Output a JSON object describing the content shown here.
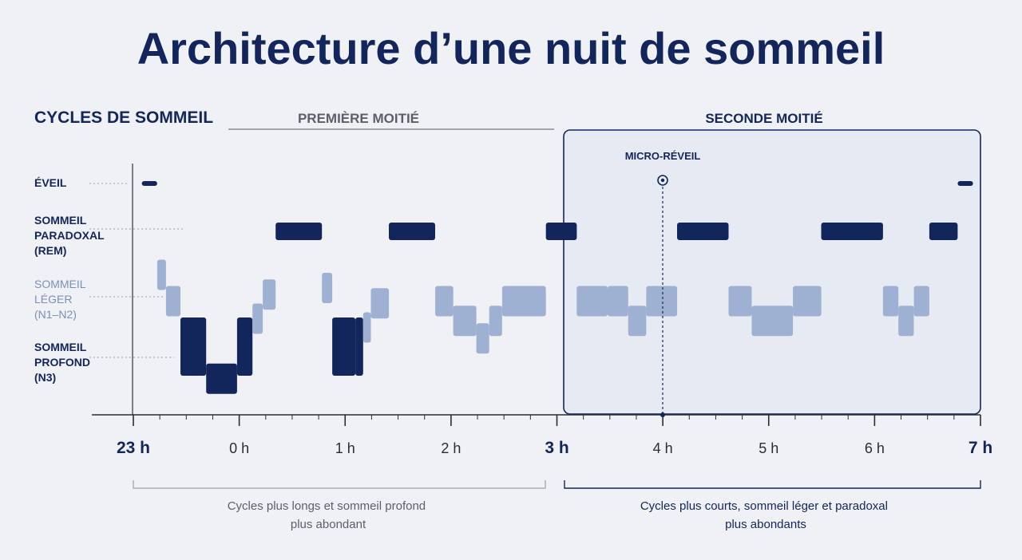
{
  "title": "Architecture d’une nuit de sommeil",
  "section_label": "CYCLES DE SOMMEIL",
  "first_half_label": "PREMIÈRE MOITIÉ",
  "second_half_label": "SECONDE MOITIÉ",
  "micro_awakening_label": "MICRO-RÉVEIL",
  "stages": {
    "awake": [
      "ÉVEIL"
    ],
    "rem": [
      "SOMMEIL",
      "PARADOXAL",
      "(REM)"
    ],
    "light": [
      "SOMMEIL",
      "LÉGER",
      "(N1–N2)"
    ],
    "deep": [
      "SOMMEIL",
      "PROFOND",
      "(N3)"
    ]
  },
  "hours": [
    "23 h",
    "0 h",
    "1 h",
    "2 h",
    "3 h",
    "4 h",
    "5 h",
    "6 h",
    "7 h"
  ],
  "first_half_caption": [
    "Cycles plus longs et sommeil profond",
    "plus abondant"
  ],
  "second_half_caption": [
    "Cycles plus courts, sommeil léger et paradoxal",
    "plus abondants"
  ],
  "colors": {
    "dark": "#13265c",
    "light": "#9eb1d2",
    "background": "#f0f1f5",
    "panel": "#e6eaf2",
    "grey_text": "#5c5f6b"
  },
  "chart_data": {
    "type": "diagram",
    "x_range_hours": [
      23,
      31
    ],
    "stage_order": [
      "awake",
      "rem",
      "light",
      "deep"
    ],
    "segments": [
      {
        "start": 23.15,
        "end": 23.45,
        "stage": "awake",
        "tone": "dark",
        "band": 0.08
      },
      {
        "start": 23.45,
        "end": 23.62,
        "stage": "light",
        "tone": "light",
        "offset": -0.5
      },
      {
        "start": 23.62,
        "end": 23.9,
        "stage": "light",
        "tone": "light",
        "offset": 0.1
      },
      {
        "start": 23.9,
        "end": 24.4,
        "stage": "deep",
        "tone": "dark",
        "offset": 0.1
      },
      {
        "start": 24.4,
        "end": 25.0,
        "stage": "deep",
        "tone": "dark",
        "offset": 0.45
      },
      {
        "start": 25.0,
        "end": 25.3,
        "stage": "deep",
        "tone": "dark",
        "offset": 0.1
      },
      {
        "start": 25.3,
        "end": 25.5,
        "stage": "light",
        "tone": "light",
        "offset": 0.5
      },
      {
        "start": 25.5,
        "end": 25.75,
        "stage": "light",
        "tone": "light",
        "offset": -0.05
      },
      {
        "start": 25.75,
        "end": 26.65,
        "stage": "rem",
        "tone": "dark"
      },
      {
        "start": 26.65,
        "end": 26.85,
        "stage": "light",
        "tone": "light",
        "offset": -0.2
      },
      {
        "start": 26.85,
        "end": 27.3,
        "stage": "deep",
        "tone": "dark",
        "offset": 0.1
      },
      {
        "start": 27.3,
        "end": 27.45,
        "stage": "deep",
        "tone": "dark",
        "offset": 0.3
      },
      {
        "start": 27.45,
        "end": 27.6,
        "stage": "light",
        "tone": "light",
        "offset": 0.7
      },
      {
        "start": 27.6,
        "end": 27.95,
        "stage": "light",
        "tone": "light",
        "offset": 0.15
      },
      {
        "start": 27.95,
        "end": 28.85,
        "stage": "rem",
        "tone": "dark"
      },
      {
        "start": 28.85,
        "end": 29.2,
        "stage": "light",
        "tone": "light",
        "offset": 0.1
      },
      {
        "start": 29.2,
        "end": 29.65,
        "stage": "light",
        "tone": "light",
        "offset": 0.55
      },
      {
        "start": 29.65,
        "end": 29.9,
        "stage": "light",
        "tone": "light",
        "offset": 0.95
      },
      {
        "start": 29.9,
        "end": 30.15,
        "stage": "light",
        "tone": "light",
        "offset": 0.55
      },
      {
        "start": 30.15,
        "end": 31.0,
        "stage": "light",
        "tone": "light",
        "offset": 0.1
      },
      {
        "start": 31.0,
        "end": 31.6,
        "stage": "rem",
        "tone": "dark"
      },
      {
        "start": 31.6,
        "end": 32.2,
        "stage": "light",
        "tone": "light",
        "offset": 0.1
      },
      {
        "start": 32.2,
        "end": 32.6,
        "stage": "light",
        "tone": "light",
        "offset": 0.1
      },
      {
        "start": 32.6,
        "end": 32.95,
        "stage": "light",
        "tone": "light",
        "offset": 0.55
      },
      {
        "start": 32.95,
        "end": 33.55,
        "stage": "light",
        "tone": "light",
        "offset": 0.1
      },
      {
        "start": 33.55,
        "end": 34.55,
        "stage": "rem",
        "tone": "dark"
      },
      {
        "start": 34.55,
        "end": 35.0,
        "stage": "light",
        "tone": "light",
        "offset": 0.1
      },
      {
        "start": 35.0,
        "end": 35.8,
        "stage": "light",
        "tone": "light",
        "offset": 0.55
      },
      {
        "start": 35.8,
        "end": 36.35,
        "stage": "light",
        "tone": "light",
        "offset": 0.1
      },
      {
        "start": 36.35,
        "end": 37.55,
        "stage": "rem",
        "tone": "dark"
      },
      {
        "start": 37.55,
        "end": 37.85,
        "stage": "light",
        "tone": "light",
        "offset": 0.1
      },
      {
        "start": 37.85,
        "end": 38.15,
        "stage": "light",
        "tone": "light",
        "offset": 0.55
      },
      {
        "start": 38.15,
        "end": 38.45,
        "stage": "light",
        "tone": "light",
        "offset": 0.1
      },
      {
        "start": 38.45,
        "end": 39.0,
        "stage": "rem",
        "tone": "dark"
      },
      {
        "start": 39.0,
        "end": 39.3,
        "stage": "awake",
        "tone": "dark",
        "band": 0.08
      }
    ],
    "micro_awakening_hour": 4
  }
}
